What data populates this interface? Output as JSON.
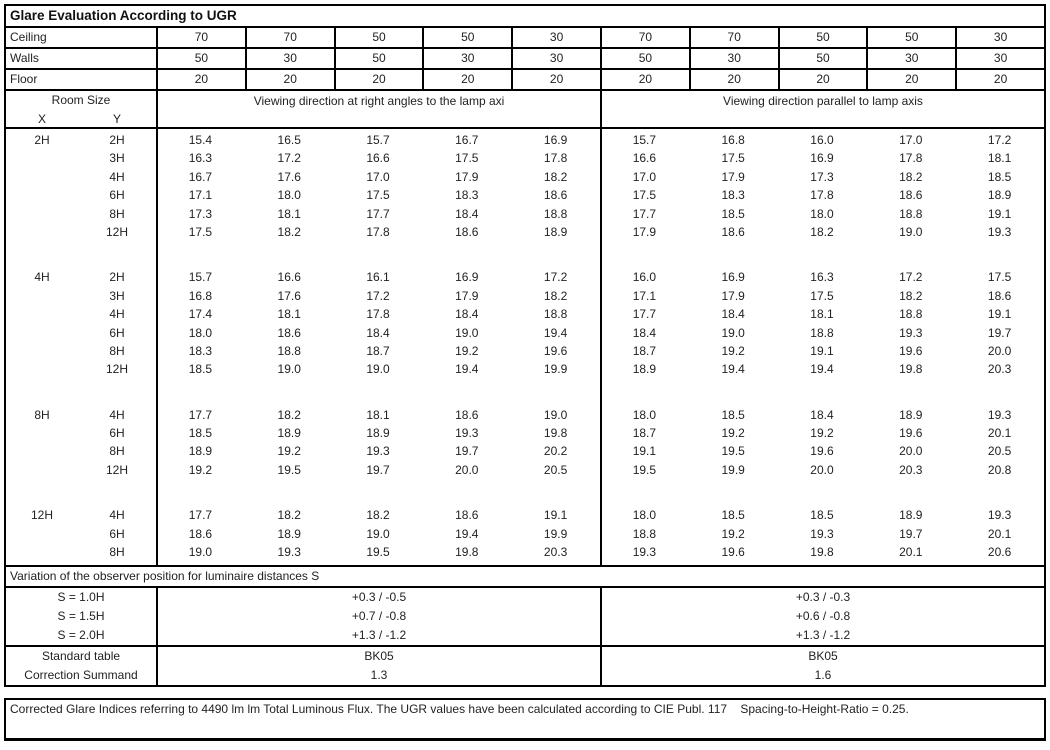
{
  "title": "Glare Evaluation According to UGR",
  "reflectances": {
    "rows": [
      {
        "label": "Ceiling",
        "values": [
          "70",
          "70",
          "50",
          "50",
          "30",
          "70",
          "70",
          "50",
          "50",
          "30"
        ]
      },
      {
        "label": "Walls",
        "values": [
          "50",
          "30",
          "50",
          "30",
          "30",
          "50",
          "30",
          "50",
          "30",
          "30"
        ]
      },
      {
        "label": "Floor",
        "values": [
          "20",
          "20",
          "20",
          "20",
          "20",
          "20",
          "20",
          "20",
          "20",
          "20"
        ]
      }
    ]
  },
  "header": {
    "room_size": "Room Size",
    "x_label": "X",
    "y_label": "Y",
    "left_heading": "Viewing direction at right angles to the lamp axi",
    "right_heading": "Viewing direction parallel to lamp axis"
  },
  "blocks": [
    {
      "x": "2H",
      "rows": [
        {
          "y": "2H",
          "left": [
            "15.4",
            "16.5",
            "15.7",
            "16.7",
            "16.9"
          ],
          "right": [
            "15.7",
            "16.8",
            "16.0",
            "17.0",
            "17.2"
          ]
        },
        {
          "y": "3H",
          "left": [
            "16.3",
            "17.2",
            "16.6",
            "17.5",
            "17.8"
          ],
          "right": [
            "16.6",
            "17.5",
            "16.9",
            "17.8",
            "18.1"
          ]
        },
        {
          "y": "4H",
          "left": [
            "16.7",
            "17.6",
            "17.0",
            "17.9",
            "18.2"
          ],
          "right": [
            "17.0",
            "17.9",
            "17.3",
            "18.2",
            "18.5"
          ]
        },
        {
          "y": "6H",
          "left": [
            "17.1",
            "18.0",
            "17.5",
            "18.3",
            "18.6"
          ],
          "right": [
            "17.5",
            "18.3",
            "17.8",
            "18.6",
            "18.9"
          ]
        },
        {
          "y": "8H",
          "left": [
            "17.3",
            "18.1",
            "17.7",
            "18.4",
            "18.8"
          ],
          "right": [
            "17.7",
            "18.5",
            "18.0",
            "18.8",
            "19.1"
          ]
        },
        {
          "y": "12H",
          "left": [
            "17.5",
            "18.2",
            "17.8",
            "18.6",
            "18.9"
          ],
          "right": [
            "17.9",
            "18.6",
            "18.2",
            "19.0",
            "19.3"
          ]
        }
      ]
    },
    {
      "x": "4H",
      "rows": [
        {
          "y": "2H",
          "left": [
            "15.7",
            "16.6",
            "16.1",
            "16.9",
            "17.2"
          ],
          "right": [
            "16.0",
            "16.9",
            "16.3",
            "17.2",
            "17.5"
          ]
        },
        {
          "y": "3H",
          "left": [
            "16.8",
            "17.6",
            "17.2",
            "17.9",
            "18.2"
          ],
          "right": [
            "17.1",
            "17.9",
            "17.5",
            "18.2",
            "18.6"
          ]
        },
        {
          "y": "4H",
          "left": [
            "17.4",
            "18.1",
            "17.8",
            "18.4",
            "18.8"
          ],
          "right": [
            "17.7",
            "18.4",
            "18.1",
            "18.8",
            "19.1"
          ]
        },
        {
          "y": "6H",
          "left": [
            "18.0",
            "18.6",
            "18.4",
            "19.0",
            "19.4"
          ],
          "right": [
            "18.4",
            "19.0",
            "18.8",
            "19.3",
            "19.7"
          ]
        },
        {
          "y": "8H",
          "left": [
            "18.3",
            "18.8",
            "18.7",
            "19.2",
            "19.6"
          ],
          "right": [
            "18.7",
            "19.2",
            "19.1",
            "19.6",
            "20.0"
          ]
        },
        {
          "y": "12H",
          "left": [
            "18.5",
            "19.0",
            "19.0",
            "19.4",
            "19.9"
          ],
          "right": [
            "18.9",
            "19.4",
            "19.4",
            "19.8",
            "20.3"
          ]
        }
      ]
    },
    {
      "x": "8H",
      "rows": [
        {
          "y": "4H",
          "left": [
            "17.7",
            "18.2",
            "18.1",
            "18.6",
            "19.0"
          ],
          "right": [
            "18.0",
            "18.5",
            "18.4",
            "18.9",
            "19.3"
          ]
        },
        {
          "y": "6H",
          "left": [
            "18.5",
            "18.9",
            "18.9",
            "19.3",
            "19.8"
          ],
          "right": [
            "18.7",
            "19.2",
            "19.2",
            "19.6",
            "20.1"
          ]
        },
        {
          "y": "8H",
          "left": [
            "18.9",
            "19.2",
            "19.3",
            "19.7",
            "20.2"
          ],
          "right": [
            "19.1",
            "19.5",
            "19.6",
            "20.0",
            "20.5"
          ]
        },
        {
          "y": "12H",
          "left": [
            "19.2",
            "19.5",
            "19.7",
            "20.0",
            "20.5"
          ],
          "right": [
            "19.5",
            "19.9",
            "20.0",
            "20.3",
            "20.8"
          ]
        }
      ]
    },
    {
      "x": "12H",
      "rows": [
        {
          "y": "4H",
          "left": [
            "17.7",
            "18.2",
            "18.2",
            "18.6",
            "19.1"
          ],
          "right": [
            "18.0",
            "18.5",
            "18.5",
            "18.9",
            "19.3"
          ]
        },
        {
          "y": "6H",
          "left": [
            "18.6",
            "18.9",
            "19.0",
            "19.4",
            "19.9"
          ],
          "right": [
            "18.8",
            "19.2",
            "19.3",
            "19.7",
            "20.1"
          ]
        },
        {
          "y": "8H",
          "left": [
            "19.0",
            "19.3",
            "19.5",
            "19.8",
            "20.3"
          ],
          "right": [
            "19.3",
            "19.6",
            "19.8",
            "20.1",
            "20.6"
          ]
        }
      ]
    }
  ],
  "variation": {
    "heading": "Variation of the observer position for luminaire distances S",
    "rows": [
      {
        "label": "S = 1.0H",
        "left": "+0.3 / -0.5",
        "right": "+0.3 / -0.3"
      },
      {
        "label": "S = 1.5H",
        "left": "+0.7 / -0.8",
        "right": "+0.6 / -0.8"
      },
      {
        "label": "S = 2.0H",
        "left": "+1.3 / -1.2",
        "right": "+1.3 / -1.2"
      }
    ]
  },
  "summary": {
    "rows": [
      {
        "label": "Standard table",
        "left": "BK05",
        "right": "BK05"
      },
      {
        "label": "Correction Summand",
        "left": "1.3",
        "right": "1.6"
      }
    ]
  },
  "footer": "Corrected Glare Indices referring to 4490 lm lm Total Luminous Flux. The UGR values have been calculated according to CIE Publ. 117    Spacing-to-Height-Ratio = 0.25."
}
